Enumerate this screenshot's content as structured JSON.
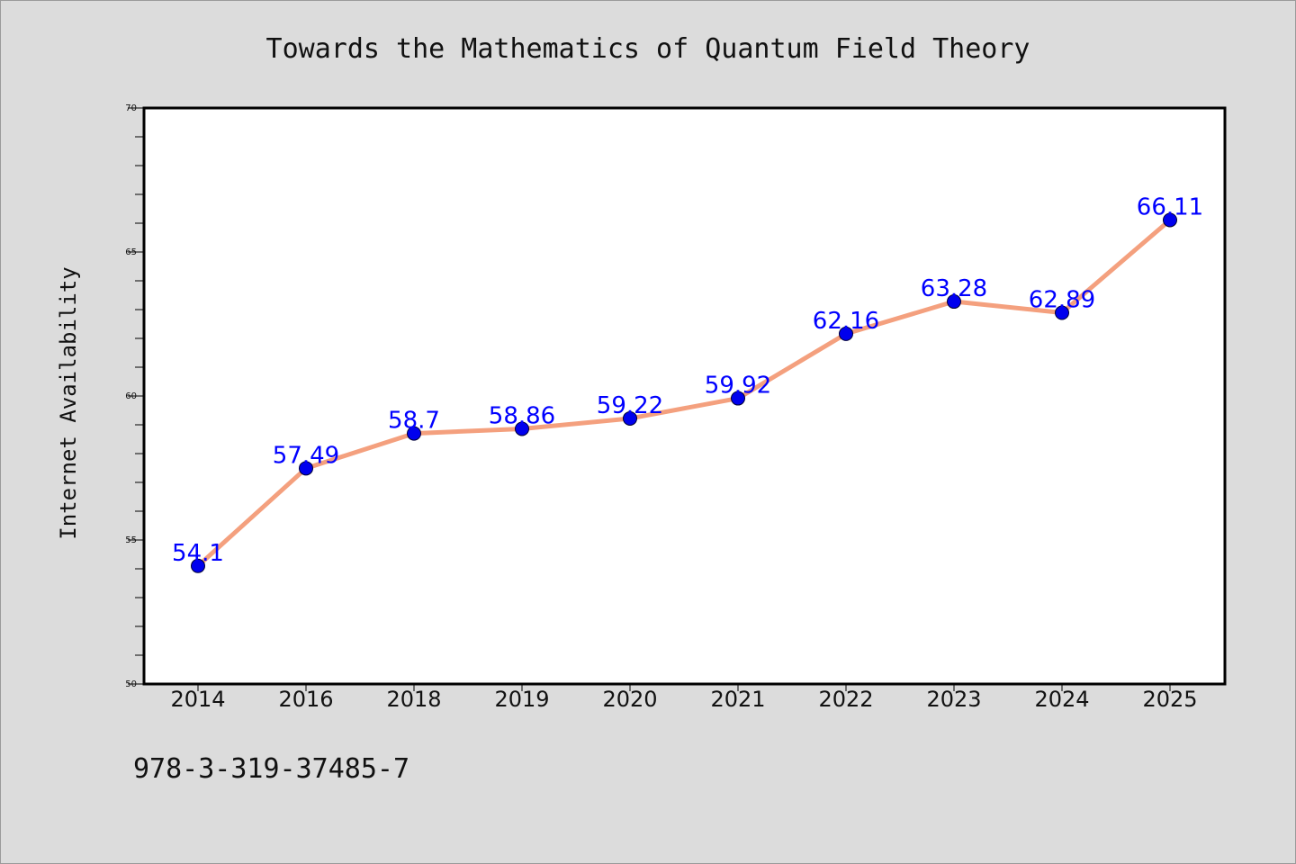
{
  "chart_data": {
    "type": "line",
    "title": "Towards the Mathematics of Quantum Field Theory",
    "xlabel": "",
    "ylabel": "Internet Availability",
    "categories": [
      "2014",
      "2016",
      "2018",
      "2019",
      "2020",
      "2021",
      "2022",
      "2023",
      "2024",
      "2025"
    ],
    "series": [
      {
        "values": [
          54.1,
          57.49,
          58.7,
          58.86,
          59.22,
          59.92,
          62.16,
          63.28,
          62.89,
          66.11
        ],
        "data_labels": [
          "54.1",
          "57.49",
          "58.7",
          "58.86",
          "59.22",
          "59.92",
          "62.16",
          "63.28",
          "62.89",
          "66.11"
        ]
      }
    ],
    "ylim": [
      50,
      70
    ],
    "yticks": [
      "50",
      "55",
      "60",
      "65",
      "70"
    ],
    "grid": false,
    "legend": "none",
    "colors": {
      "line": "#f4a07e",
      "marker": "#0000ee",
      "data_label": "#0000ff"
    }
  },
  "footer": {
    "isbn": "978-3-319-37485-7"
  }
}
